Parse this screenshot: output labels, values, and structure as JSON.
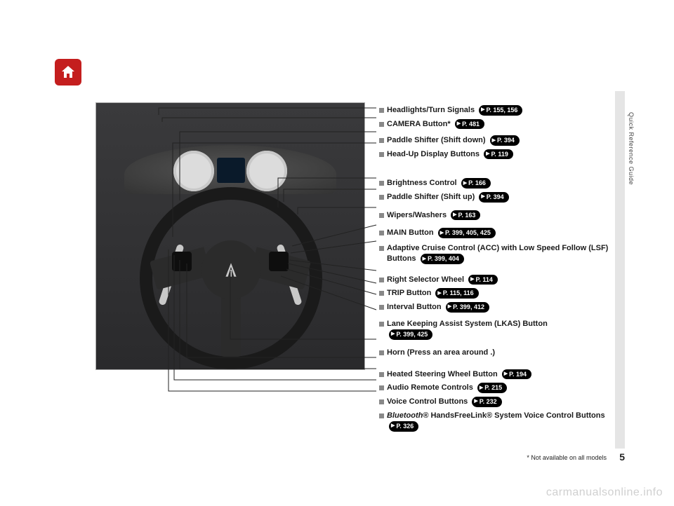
{
  "page": {
    "number": "5",
    "side_label": "Quick Reference Guide",
    "footnote": "* Not available on all models",
    "watermark": "carmanualsonline.info"
  },
  "colors": {
    "home_bg": "#c41e1e",
    "pill_bg": "#000000",
    "pill_fg": "#ffffff",
    "text": "#1a1a1a",
    "tab_bg": "#e5e5e5"
  },
  "callouts": [
    {
      "label": "Headlights/Turn Signals",
      "pages": "P. 155, 156",
      "gap": 0
    },
    {
      "label": "CAMERA Button*",
      "pages": "P. 481",
      "gap": 0
    },
    {
      "label": "Paddle Shifter (Shift down)",
      "pages": "P. 394",
      "gap": 4
    },
    {
      "label": "Head-Up Display Buttons",
      "pages": "P. 119",
      "gap": 0
    },
    {
      "label": "Brightness Control",
      "pages": "P. 166",
      "gap": 22
    },
    {
      "label": "Paddle Shifter (Shift up)",
      "pages": "P. 394",
      "gap": 0
    },
    {
      "label": "Wipers/Washers",
      "pages": "P. 163",
      "gap": 6
    },
    {
      "label": "MAIN Button",
      "pages": "P. 399, 405, 425",
      "gap": 6
    },
    {
      "label": "Adaptive Cruise Control (ACC) with Low Speed Follow (LSF) Buttons",
      "pages": "P. 399, 404",
      "gap": 2
    },
    {
      "label": "Right Selector Wheel",
      "pages": "P. 114",
      "gap": 10
    },
    {
      "label": "TRIP Button",
      "pages": "P. 115, 116",
      "gap": 0
    },
    {
      "label": "Interval Button",
      "pages": "P. 399, 412",
      "gap": 0
    },
    {
      "label": "Lane Keeping Assist System (LKAS) Button",
      "pages": "P. 399, 425",
      "gap": 4,
      "pill_newline": true
    },
    {
      "label": "Horn (Press an area around       .)",
      "pages": "",
      "gap": 6
    },
    {
      "label": "Heated Steering Wheel Button",
      "pages": "P. 194",
      "gap": 12
    },
    {
      "label": "Audio Remote Controls",
      "pages": "P. 215",
      "gap": 0
    },
    {
      "label": "Voice Control Buttons",
      "pages": "P. 232",
      "gap": 0
    },
    {
      "label_html": "<i>Bluetooth</i>® HandsFreeLink® System Voice Control Buttons",
      "pages": "P. 326",
      "gap": 0
    }
  ]
}
